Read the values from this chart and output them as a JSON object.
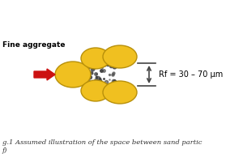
{
  "bg_color": "#ffffff",
  "ellipse_color": "#f0c020",
  "ellipse_edge_color": "#b8900a",
  "arrow_color": "#cc1111",
  "dot_color": "#444444",
  "line_color": "#444444",
  "label_fine_aggregate": "Fine aggregate",
  "label_rf": "Rf = 30 – 70 μm",
  "caption_line1": "g.1 Assumed illustration of the space between sand partic",
  "caption_line2": "f)",
  "label_fontsize": 6.5,
  "rf_fontsize": 7.0,
  "caption_fontsize": 6.0
}
